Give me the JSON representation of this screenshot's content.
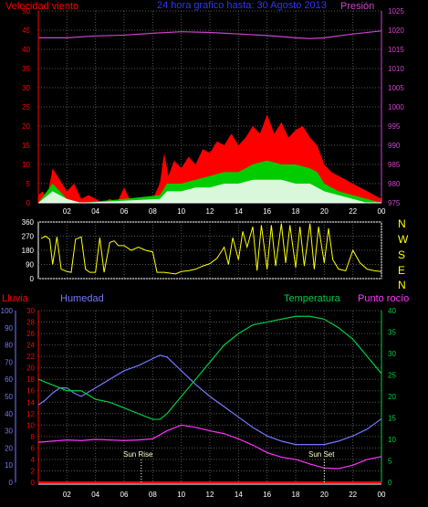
{
  "header": {
    "wind_title": "Velocidad viento",
    "date_title": "24 hora grafico hasta: 30 Agosto 2013",
    "pressure_title": "Presión"
  },
  "lower_header": {
    "rain": "Lluvia",
    "humidity": "Humedad",
    "temperature": "Temperatura",
    "dewpoint": "Punto rocío"
  },
  "annotations": {
    "sunrise": "Sun Rise",
    "sunset": "Sun Set"
  },
  "direction_labels": [
    "N",
    "W",
    "S",
    "E",
    "N"
  ],
  "colors": {
    "wind": "#ff0000",
    "gust_mid": "#00cc00",
    "wind_low": "#ffffff",
    "pressure": "#cc44cc",
    "direction": "#ffff00",
    "humidity": "#7777ff",
    "temperature": "#00cc44",
    "dewpoint": "#ff33ff",
    "rain": "#ff0000",
    "date": "#3333ff",
    "grid": "#555555",
    "axis": "#ffffff"
  },
  "chart_data": [
    {
      "type": "area",
      "x_ticks": [
        "02",
        "04",
        "06",
        "08",
        "10",
        "12",
        "14",
        "16",
        "18",
        "20",
        "22",
        "00"
      ],
      "x_range_hours": [
        0,
        24
      ],
      "left_axis": {
        "ticks": [
          0,
          5,
          10,
          15,
          20,
          25,
          30,
          35,
          40,
          45,
          50
        ],
        "range": [
          0,
          50
        ]
      },
      "right_axis": {
        "ticks": [
          975,
          980,
          985,
          990,
          995,
          1000,
          1005,
          1010,
          1015,
          1020,
          1025
        ],
        "range": [
          975,
          1025
        ]
      },
      "wind_gust": [
        [
          0,
          2
        ],
        [
          0.3,
          3
        ],
        [
          0.6,
          1
        ],
        [
          1.0,
          9
        ],
        [
          1.5,
          6
        ],
        [
          2.0,
          3
        ],
        [
          2.5,
          5
        ],
        [
          3.0,
          1
        ],
        [
          3.5,
          2
        ],
        [
          4.0,
          1
        ],
        [
          4.5,
          0
        ],
        [
          5.0,
          1
        ],
        [
          5.5,
          0
        ],
        [
          6.0,
          4
        ],
        [
          6.5,
          0
        ],
        [
          7.0,
          1
        ],
        [
          7.5,
          0
        ],
        [
          8.0,
          1
        ],
        [
          8.5,
          5
        ],
        [
          8.8,
          13
        ],
        [
          9.1,
          7
        ],
        [
          9.5,
          11
        ],
        [
          10.0,
          9
        ],
        [
          10.5,
          12
        ],
        [
          11.0,
          10
        ],
        [
          11.5,
          14
        ],
        [
          12.0,
          13
        ],
        [
          12.5,
          16
        ],
        [
          13.0,
          15
        ],
        [
          13.5,
          18
        ],
        [
          14.0,
          15
        ],
        [
          14.5,
          17
        ],
        [
          15.0,
          20
        ],
        [
          15.5,
          18
        ],
        [
          16.0,
          23
        ],
        [
          16.5,
          18
        ],
        [
          17.0,
          21
        ],
        [
          17.5,
          17
        ],
        [
          18.0,
          19
        ],
        [
          18.5,
          20
        ],
        [
          19.0,
          17
        ],
        [
          19.5,
          15
        ],
        [
          20.0,
          10
        ],
        [
          20.5,
          8
        ],
        [
          21.0,
          7
        ],
        [
          21.5,
          6
        ],
        [
          22.0,
          5
        ],
        [
          22.5,
          4
        ],
        [
          23.0,
          3
        ],
        [
          23.5,
          2
        ],
        [
          24.0,
          1
        ]
      ],
      "wind_mid": [
        [
          0,
          0
        ],
        [
          1.0,
          5
        ],
        [
          1.5,
          3
        ],
        [
          2.0,
          1
        ],
        [
          3.0,
          0
        ],
        [
          6.0,
          1
        ],
        [
          8.5,
          2
        ],
        [
          9.0,
          5
        ],
        [
          10.0,
          5
        ],
        [
          11.0,
          6
        ],
        [
          12.0,
          7
        ],
        [
          13.0,
          8
        ],
        [
          14.0,
          8
        ],
        [
          15.0,
          10
        ],
        [
          16.0,
          11
        ],
        [
          17.0,
          10
        ],
        [
          18.0,
          10
        ],
        [
          19.0,
          9
        ],
        [
          19.5,
          8
        ],
        [
          20.0,
          5
        ],
        [
          21.0,
          3
        ],
        [
          22.0,
          2
        ],
        [
          23.0,
          1
        ],
        [
          24.0,
          0
        ]
      ],
      "wind_avg": [
        [
          0,
          0
        ],
        [
          1.0,
          3
        ],
        [
          1.5,
          2
        ],
        [
          2.0,
          1
        ],
        [
          3.0,
          0
        ],
        [
          8.5,
          1
        ],
        [
          9.0,
          3
        ],
        [
          10.0,
          3
        ],
        [
          11.0,
          4
        ],
        [
          12.0,
          4
        ],
        [
          13.0,
          5
        ],
        [
          14.0,
          5
        ],
        [
          15.0,
          6
        ],
        [
          16.0,
          6
        ],
        [
          17.0,
          6
        ],
        [
          18.0,
          5
        ],
        [
          19.0,
          5
        ],
        [
          20.0,
          3
        ],
        [
          21.0,
          2
        ],
        [
          22.0,
          1
        ],
        [
          23.0,
          0
        ],
        [
          24.0,
          0
        ]
      ],
      "pressure": [
        [
          0,
          1018
        ],
        [
          2,
          1018
        ],
        [
          4,
          1018.5
        ],
        [
          6,
          1018.7
        ],
        [
          8,
          1019.2
        ],
        [
          10,
          1019.6
        ],
        [
          12,
          1019.4
        ],
        [
          14,
          1019.0
        ],
        [
          16,
          1018.6
        ],
        [
          18,
          1018.0
        ],
        [
          19,
          1017.8
        ],
        [
          20,
          1018.0
        ],
        [
          22,
          1019.0
        ],
        [
          24,
          1019.8
        ]
      ]
    },
    {
      "type": "line",
      "y_ticks": [
        0,
        90,
        180,
        270,
        360
      ],
      "y_range": [
        0,
        360
      ],
      "direction": [
        [
          0.2,
          255
        ],
        [
          0.5,
          270
        ],
        [
          0.8,
          250
        ],
        [
          1.0,
          90
        ],
        [
          1.3,
          265
        ],
        [
          1.6,
          60
        ],
        [
          2.0,
          45
        ],
        [
          2.3,
          40
        ],
        [
          2.6,
          250
        ],
        [
          3.0,
          265
        ],
        [
          3.3,
          60
        ],
        [
          3.6,
          40
        ],
        [
          4.0,
          40
        ],
        [
          4.3,
          260
        ],
        [
          4.6,
          40
        ],
        [
          5.0,
          230
        ],
        [
          5.3,
          240
        ],
        [
          5.6,
          210
        ],
        [
          6.0,
          210
        ],
        [
          6.5,
          180
        ],
        [
          7.0,
          200
        ],
        [
          7.5,
          180
        ],
        [
          8.0,
          170
        ],
        [
          8.3,
          40
        ],
        [
          8.8,
          40
        ],
        [
          9.2,
          35
        ],
        [
          9.6,
          30
        ],
        [
          10.0,
          45
        ],
        [
          10.5,
          50
        ],
        [
          11.0,
          60
        ],
        [
          11.5,
          80
        ],
        [
          12.0,
          95
        ],
        [
          12.5,
          130
        ],
        [
          13.0,
          200
        ],
        [
          13.3,
          90
        ],
        [
          13.6,
          260
        ],
        [
          14.0,
          120
        ],
        [
          14.3,
          300
        ],
        [
          14.6,
          200
        ],
        [
          15.0,
          330
        ],
        [
          15.3,
          50
        ],
        [
          15.6,
          340
        ],
        [
          16.0,
          60
        ],
        [
          16.3,
          340
        ],
        [
          16.6,
          80
        ],
        [
          17.0,
          350
        ],
        [
          17.3,
          100
        ],
        [
          17.6,
          340
        ],
        [
          18.0,
          70
        ],
        [
          18.3,
          330
        ],
        [
          18.6,
          80
        ],
        [
          19.0,
          350
        ],
        [
          19.3,
          60
        ],
        [
          19.6,
          330
        ],
        [
          20.0,
          100
        ],
        [
          20.3,
          320
        ],
        [
          20.6,
          120
        ],
        [
          21.0,
          60
        ],
        [
          21.5,
          50
        ],
        [
          22.0,
          180
        ],
        [
          22.5,
          100
        ],
        [
          23.0,
          60
        ],
        [
          23.5,
          50
        ],
        [
          24.0,
          45
        ]
      ]
    },
    {
      "type": "line",
      "x_ticks": [
        "02",
        "04",
        "06",
        "08",
        "10",
        "12",
        "14",
        "16",
        "18",
        "20",
        "22",
        "00"
      ],
      "humidity_axis": {
        "ticks": [
          0,
          10,
          20,
          30,
          40,
          50,
          60,
          70,
          80,
          90,
          100
        ],
        "range": [
          0,
          100
        ]
      },
      "temp_axis": {
        "ticks": [
          0,
          2,
          4,
          6,
          8,
          10,
          12,
          14,
          16,
          18,
          20,
          22,
          24,
          26,
          28,
          30
        ],
        "range": [
          0,
          30
        ]
      },
      "right_axis": {
        "ticks": [
          0,
          5,
          10,
          15,
          20,
          25,
          30,
          35,
          40
        ],
        "range": [
          0,
          40
        ]
      },
      "humidity": [
        [
          0,
          45
        ],
        [
          0.5,
          48
        ],
        [
          1.0,
          52
        ],
        [
          1.5,
          55
        ],
        [
          2.0,
          55
        ],
        [
          2.5,
          52
        ],
        [
          3.0,
          50
        ],
        [
          4.0,
          55
        ],
        [
          5.0,
          60
        ],
        [
          6.0,
          65
        ],
        [
          7.0,
          68
        ],
        [
          8.0,
          72
        ],
        [
          8.5,
          74
        ],
        [
          9.0,
          73
        ],
        [
          10.0,
          65
        ],
        [
          11.0,
          57
        ],
        [
          12.0,
          50
        ],
        [
          13.0,
          44
        ],
        [
          14.0,
          38
        ],
        [
          15.0,
          32
        ],
        [
          16.0,
          27
        ],
        [
          17.0,
          24
        ],
        [
          18.0,
          22
        ],
        [
          19.0,
          22
        ],
        [
          20.0,
          22
        ],
        [
          21.0,
          24
        ],
        [
          22.0,
          27
        ],
        [
          23.0,
          31
        ],
        [
          24.0,
          37
        ]
      ],
      "temperature": [
        [
          0,
          18
        ],
        [
          1.0,
          17
        ],
        [
          2.0,
          16
        ],
        [
          3.0,
          16
        ],
        [
          4.0,
          14.5
        ],
        [
          5.0,
          14
        ],
        [
          6.0,
          13
        ],
        [
          7.0,
          12
        ],
        [
          8.0,
          11
        ],
        [
          8.5,
          11
        ],
        [
          9.0,
          12
        ],
        [
          10.0,
          15
        ],
        [
          11.0,
          18
        ],
        [
          12.0,
          21
        ],
        [
          13.0,
          24
        ],
        [
          14.0,
          26
        ],
        [
          15.0,
          27.5
        ],
        [
          16.0,
          28
        ],
        [
          17.0,
          28.5
        ],
        [
          18.0,
          29
        ],
        [
          19.0,
          29
        ],
        [
          20.0,
          28.5
        ],
        [
          21.0,
          27
        ],
        [
          22.0,
          25
        ],
        [
          23.0,
          22
        ],
        [
          24.0,
          19
        ]
      ],
      "dewpoint": [
        [
          0,
          7
        ],
        [
          1.0,
          7.2
        ],
        [
          2.0,
          7.4
        ],
        [
          3.0,
          7.3
        ],
        [
          4.0,
          7.5
        ],
        [
          5.0,
          7.4
        ],
        [
          6.0,
          7.3
        ],
        [
          7.0,
          7.4
        ],
        [
          8.0,
          7.6
        ],
        [
          9.0,
          9
        ],
        [
          10.0,
          10
        ],
        [
          11.0,
          9.6
        ],
        [
          12.0,
          9
        ],
        [
          13.0,
          8.5
        ],
        [
          14.0,
          7.6
        ],
        [
          15.0,
          6.5
        ],
        [
          16.0,
          5.2
        ],
        [
          17.0,
          4.4
        ],
        [
          18.0,
          4
        ],
        [
          19.0,
          3.2
        ],
        [
          20.0,
          2.5
        ],
        [
          21.0,
          2.4
        ],
        [
          22.0,
          3
        ],
        [
          23.0,
          4
        ],
        [
          24.0,
          4.5
        ]
      ],
      "rain": [
        [
          0,
          0
        ],
        [
          24,
          0
        ]
      ],
      "sunrise_hour": 7.2,
      "sunset_hour": 20.0
    }
  ]
}
